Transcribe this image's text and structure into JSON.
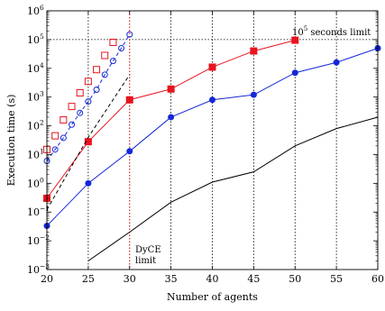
{
  "chart_data": {
    "type": "line",
    "xlabel": "Number of agents",
    "ylabel": "Execution time (s)",
    "xlim": [
      20,
      60
    ],
    "ylim_log10": [
      -3,
      6
    ],
    "y_scale": "log",
    "grid": "vertical dotted lines at x ticks",
    "x_ticks": [
      20,
      25,
      30,
      35,
      40,
      45,
      50,
      55,
      60
    ],
    "x_tick_labels": [
      "20",
      "25",
      "30",
      "35",
      "40",
      "45",
      "50",
      "55",
      "60"
    ],
    "y_ticks_exp": [
      -3,
      -2,
      -1,
      0,
      1,
      2,
      3,
      4,
      5,
      6
    ],
    "y_tick_labels": [
      "10",
      "10",
      "10",
      "10",
      "10",
      "10",
      "10",
      "10",
      "10",
      "10"
    ],
    "y_tick_superscripts": [
      "−3",
      "−2",
      "−1",
      "0",
      "1",
      "2",
      "3",
      "4",
      "5",
      "6"
    ],
    "colors": {
      "red": "#e8141e",
      "blue": "#1428d8",
      "black": "#000000"
    },
    "series": [
      {
        "color": "#e8141e",
        "style": "solid",
        "marker": "square-filled",
        "x": [
          20,
          25,
          30,
          35,
          40,
          45,
          50
        ],
        "y": [
          0.3,
          28,
          800,
          1900,
          11000,
          40000,
          95000
        ]
      },
      {
        "color": "#1428d8",
        "style": "solid",
        "marker": "circle-filled",
        "x": [
          20,
          25,
          30,
          35,
          40,
          45,
          50,
          55,
          60
        ],
        "y": [
          0.033,
          1.0,
          13,
          200,
          800,
          1200,
          7000,
          16000,
          50000
        ]
      },
      {
        "color": "#000000",
        "style": "solid",
        "marker": "none",
        "x": [
          25,
          30,
          35,
          40,
          45,
          50,
          55,
          60
        ],
        "y": [
          0.002,
          0.02,
          0.22,
          1.1,
          2.5,
          20,
          80,
          200
        ]
      },
      {
        "color": "#e8141e",
        "style": "none",
        "marker": "square-open",
        "x": [
          20,
          21,
          22,
          23,
          24,
          25,
          26,
          27,
          28
        ],
        "y": [
          15,
          45,
          160,
          470,
          1400,
          3500,
          9000,
          28000,
          80000
        ]
      },
      {
        "color": "#1428d8",
        "style": "dashed",
        "marker": "circle-open",
        "x": [
          20,
          21,
          22,
          23,
          24,
          25,
          26,
          27,
          28,
          29,
          30
        ],
        "y": [
          6,
          15,
          38,
          110,
          280,
          700,
          1800,
          6000,
          18000,
          50000,
          150000
        ]
      },
      {
        "color": "#000000",
        "style": "dashed",
        "marker": "none",
        "x": [
          20,
          25,
          30
        ],
        "y": [
          0.12,
          40,
          6000
        ]
      }
    ],
    "annotations": {
      "limit": {
        "y": 100000,
        "base": "10",
        "exp": "5",
        "text": " seconds limit"
      },
      "dyce": {
        "x": 30,
        "line1": "DyCE",
        "line2": "limit",
        "color": "#e8141e"
      }
    }
  }
}
